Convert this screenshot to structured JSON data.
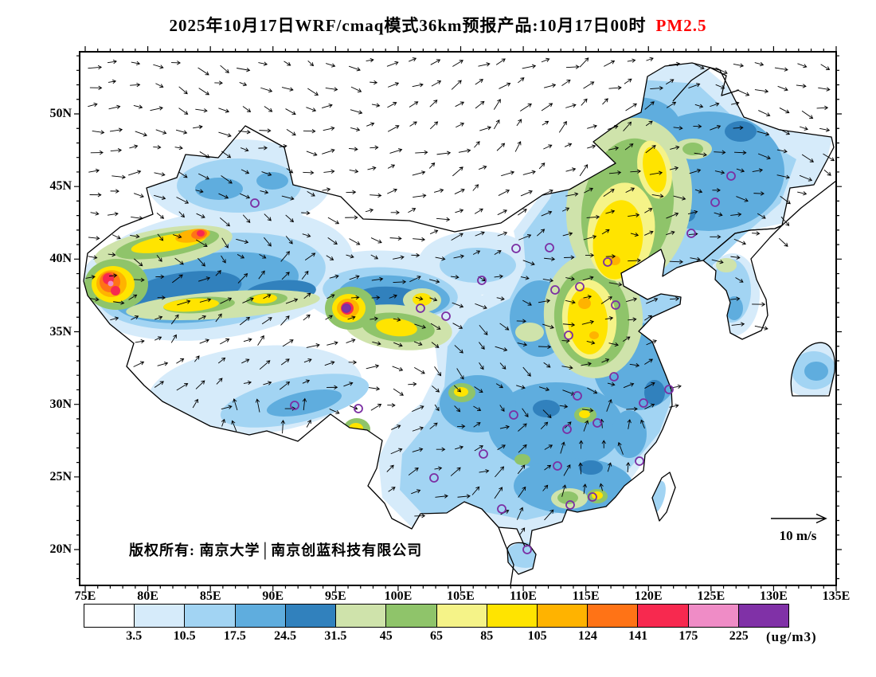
{
  "title": {
    "main": "2025年10月17日WRF/cmaq模式36km预报产品:10月17日00时",
    "species": "PM2.5",
    "species_color": "#ff0000"
  },
  "map": {
    "copyright": "版权所有: 南京大学│南京创蓝科技有限公司",
    "wind_legend_label": "10 m/s",
    "station_marker_color": "#7b2fa3",
    "coastline_color": "#000000"
  },
  "axes": {
    "lat_ticks": [
      "50N",
      "45N",
      "40N",
      "35N",
      "30N",
      "25N",
      "20N"
    ],
    "lon_ticks": [
      "75E",
      "80E",
      "85E",
      "90E",
      "95E",
      "100E",
      "105E",
      "110E",
      "115E",
      "120E",
      "125E",
      "130E",
      "135E"
    ]
  },
  "colorbar": {
    "unit": "(ug/m3)",
    "levels": [
      "3.5",
      "10.5",
      "17.5",
      "24.5",
      "31.5",
      "45",
      "65",
      "85",
      "105",
      "124",
      "141",
      "175",
      "225"
    ],
    "colors": [
      "#ffffff",
      "#d6ebfa",
      "#a2d4f3",
      "#5fadde",
      "#3181bd",
      "#cfe3ab",
      "#8fc46a",
      "#f5f388",
      "#ffe400",
      "#ffb300",
      "#ff7316",
      "#f7294f",
      "#ef8cc6",
      "#8031a7"
    ]
  },
  "chart_data": {
    "type": "heatmap",
    "subtype": "filled contour map of China with wind vectors",
    "model": "WRF/CMAQ 36km forecast product",
    "valid_time": "2025年10月17日00时",
    "variable": "PM2.5",
    "unit": "ug/m3",
    "x_axis": {
      "label": "Longitude",
      "ticks": [
        "75E",
        "80E",
        "85E",
        "90E",
        "95E",
        "100E",
        "105E",
        "110E",
        "115E",
        "120E",
        "125E",
        "130E",
        "135E"
      ]
    },
    "y_axis": {
      "label": "Latitude",
      "ticks": [
        "20N",
        "25N",
        "30N",
        "35N",
        "40N",
        "45N",
        "50N"
      ]
    },
    "contour_levels": [
      3.5,
      10.5,
      17.5,
      24.5,
      31.5,
      45,
      65,
      85,
      105,
      124,
      141,
      175,
      225
    ],
    "palette": [
      "#ffffff",
      "#d6ebfa",
      "#a2d4f3",
      "#5fadde",
      "#3181bd",
      "#cfe3ab",
      "#8fc46a",
      "#f5f388",
      "#ffe400",
      "#ffb300",
      "#ff7316",
      "#f7294f",
      "#ef8cc6",
      "#8031a7"
    ],
    "wind_reference_vector": "10 m/s",
    "high_regions": [
      {
        "area": "SW Xinjiang (Kashgar-Hotan, ~76-80E, 36-40N)",
        "level": "141-225+"
      },
      {
        "area": "Northern Tarim rim (~79-86E, 40-41.5N)",
        "level": "105-175"
      },
      {
        "area": "W Qinghai / Qaidam hotspot (~94-96E, 36-37N)",
        "level": ">225 (purple core)"
      },
      {
        "area": "North China Plain (~113-117E, 34-40N)",
        "level": "65-124"
      },
      {
        "area": "W Liaoning / Jilin (~119-124E, 40-47N)",
        "level": "65-105"
      },
      {
        "area": "Scattered urban spots in central/south China",
        "level": "45-85"
      }
    ],
    "background": "Most of eastern and southern China in 3.5-31.5 range; station locations marked with purple circles"
  }
}
